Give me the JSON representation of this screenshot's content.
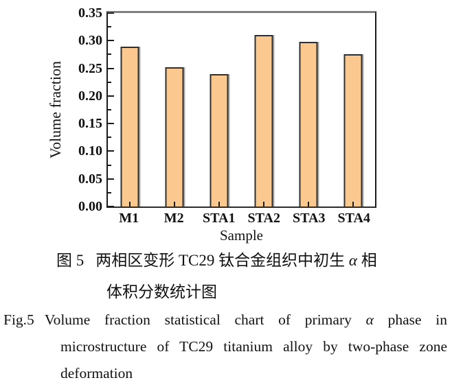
{
  "chart_data": {
    "type": "bar",
    "title": "",
    "categories": [
      "M1",
      "M2",
      "STA1",
      "STA2",
      "STA3",
      "STA4"
    ],
    "values": [
      0.289,
      0.252,
      0.24,
      0.31,
      0.298,
      0.276
    ],
    "xlabel": "Sample",
    "ylabel": "Volume fraction",
    "ylim": [
      0,
      0.35
    ],
    "ytick_labels": [
      "0.00",
      "0.05",
      "0.10",
      "0.15",
      "0.20",
      "0.25",
      "0.30",
      "0.35"
    ],
    "ytick_step": 0.05,
    "minor_tick_step": 0.025,
    "grid": false,
    "legend": null,
    "bar_color": "#fbc990",
    "bar_border_color": "#2e2e2e"
  },
  "captions": {
    "zh_label": "图 5",
    "zh_line1": "两相区变形 TC29 钛合金组织中初生 α 相",
    "zh_line2": "体积分数统计图",
    "en_label": "Fig.5",
    "en_line1": "Volume fraction statistical chart of primary α phase in",
    "en_line2": "microstructure of TC29 titanium alloy by two-phase zone",
    "en_line3": "deformation"
  }
}
